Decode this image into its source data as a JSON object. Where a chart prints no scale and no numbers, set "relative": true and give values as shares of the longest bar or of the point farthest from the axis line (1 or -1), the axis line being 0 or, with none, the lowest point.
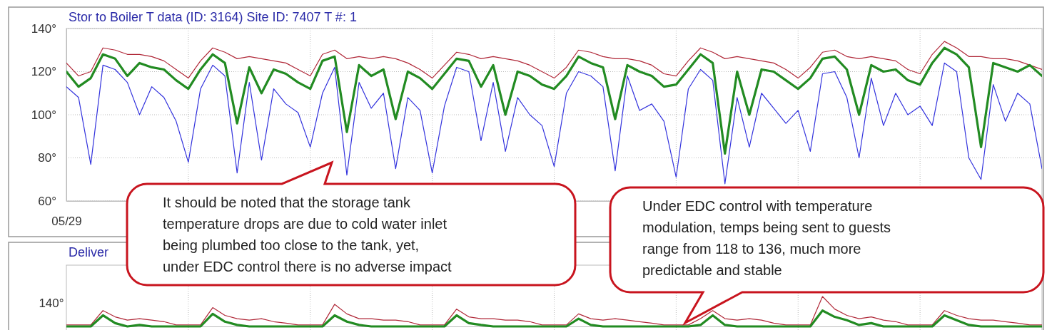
{
  "chart_data": [
    {
      "type": "line",
      "title": "Stor to Boiler T data (ID: 3164) Site ID: 7407 T #: 1",
      "categories": [
        "05/29",
        null,
        null,
        null,
        null,
        null,
        null,
        null,
        null,
        null,
        null,
        null,
        null,
        null,
        null,
        null,
        null,
        null,
        null,
        null,
        null,
        null,
        null,
        null,
        null,
        null,
        null,
        null,
        null,
        null,
        null,
        null,
        null,
        null,
        null,
        null,
        null,
        null,
        null,
        null,
        null,
        null,
        null,
        null,
        null,
        null,
        null,
        null,
        null,
        null,
        null,
        null,
        null,
        null,
        null,
        null,
        null,
        null,
        null,
        null,
        null,
        null,
        null,
        null,
        null,
        null,
        null,
        null,
        null,
        null,
        null,
        null,
        null,
        null,
        null,
        null,
        null,
        null,
        null,
        null,
        null
      ],
      "series": [
        {
          "color": "#3333dd",
          "values": [
            113,
            108,
            77,
            123,
            121,
            115,
            100,
            113,
            108,
            97,
            78,
            112,
            123,
            118,
            73,
            115,
            79,
            112,
            105,
            101,
            85,
            110,
            122,
            72,
            115,
            103,
            110,
            75,
            108,
            102,
            73,
            104,
            122,
            120,
            88,
            115,
            83,
            108,
            100,
            95,
            76,
            110,
            120,
            118,
            113,
            74,
            118,
            102,
            105,
            97,
            71,
            112,
            121,
            116,
            68,
            108,
            85,
            110,
            103,
            96,
            102,
            83,
            119,
            120,
            108,
            80,
            117,
            95,
            110,
            100,
            104,
            95,
            124,
            120,
            80,
            70,
            114,
            97,
            110,
            105,
            75
          ]
        },
        {
          "color": "#b02838",
          "values": [
            124,
            118,
            120,
            131,
            130,
            128,
            128,
            127,
            125,
            121,
            117,
            125,
            131,
            129,
            126,
            127,
            126,
            125,
            124,
            121,
            118,
            128,
            130,
            126,
            127,
            126,
            127,
            126,
            124,
            121,
            117,
            123,
            129,
            128,
            126,
            127,
            126,
            125,
            123,
            120,
            117,
            122,
            130,
            129,
            127,
            126,
            126,
            125,
            123,
            119,
            118,
            125,
            131,
            129,
            126,
            127,
            126,
            125,
            124,
            121,
            117,
            122,
            129,
            130,
            127,
            126,
            127,
            126,
            125,
            121,
            119,
            128,
            134,
            131,
            127,
            127,
            126,
            126,
            125,
            123,
            121
          ]
        },
        {
          "color": "#228b22",
          "values": [
            120,
            113,
            117,
            128,
            126,
            118,
            124,
            122,
            121,
            116,
            112,
            121,
            128,
            124,
            96,
            122,
            110,
            121,
            119,
            115,
            112,
            125,
            127,
            92,
            123,
            118,
            121,
            98,
            120,
            117,
            112,
            119,
            126,
            125,
            113,
            123,
            100,
            120,
            118,
            114,
            112,
            118,
            127,
            124,
            122,
            98,
            123,
            120,
            118,
            113,
            114,
            121,
            128,
            124,
            82,
            120,
            100,
            121,
            120,
            116,
            112,
            117,
            126,
            127,
            121,
            100,
            123,
            120,
            121,
            116,
            114,
            124,
            131,
            128,
            122,
            85,
            124,
            122,
            120,
            123,
            118
          ]
        }
      ],
      "ylim": [
        60,
        140
      ],
      "yticks": [
        {
          "value": 60,
          "label": "60°"
        },
        {
          "value": 80,
          "label": "80°"
        },
        {
          "value": 100,
          "label": "100°"
        },
        {
          "value": 120,
          "label": "120°"
        },
        {
          "value": 140,
          "label": "140°"
        }
      ],
      "grid": true,
      "annotations": [
        "It should be noted that the storage tank\ntemperature drops are due to cold water inlet\nbeing plumbed too close to the tank, yet,\nunder EDC control there is no adverse impact",
        "Under EDC control with temperature\nmodulation, temps being sent to guests\nrange from 118 to 136, much more\npredictable and stable"
      ]
    },
    {
      "type": "line",
      "title": "Deliver",
      "relative": true,
      "categories": [
        null,
        null,
        null,
        null,
        null,
        null,
        null,
        null,
        null,
        null,
        null,
        null,
        null,
        null,
        null,
        null,
        null,
        null,
        null,
        null,
        null,
        null,
        null,
        null,
        null,
        null,
        null,
        null,
        null,
        null,
        null,
        null,
        null,
        null,
        null,
        null,
        null,
        null,
        null,
        null,
        null,
        null,
        null,
        null,
        null,
        null,
        null,
        null,
        null,
        null,
        null,
        null,
        null,
        null,
        null,
        null,
        null,
        null,
        null,
        null,
        null,
        null,
        null,
        null,
        null,
        null,
        null,
        null,
        null,
        null,
        null,
        null,
        null,
        null,
        null,
        null,
        null,
        null,
        null,
        null,
        null
      ],
      "series": [
        {
          "color": "#b02838",
          "values": [
            0.05,
            0.05,
            0.05,
            0.53,
            0.32,
            0.21,
            0.26,
            0.21,
            0.16,
            0.05,
            0.05,
            0.05,
            0.63,
            0.37,
            0.26,
            0.21,
            0.26,
            0.16,
            0.11,
            0.05,
            0.05,
            0.05,
            0.74,
            0.42,
            0.26,
            0.26,
            0.21,
            0.21,
            0.16,
            0.05,
            0.05,
            0.05,
            0.58,
            0.32,
            0.26,
            0.26,
            0.21,
            0.21,
            0.16,
            0.05,
            0.05,
            0.05,
            0.42,
            0.26,
            0.21,
            0.26,
            0.21,
            0.16,
            0.11,
            0.05,
            0.05,
            0.05,
            0.26,
            0.53,
            0.26,
            0.21,
            0.26,
            0.21,
            0.11,
            0.05,
            0.05,
            0.05,
            1,
            0.58,
            0.37,
            0.26,
            0.32,
            0.21,
            0.16,
            0.05,
            0.05,
            0.05,
            0.53,
            0.37,
            0.26,
            0.21,
            0.21,
            0.16,
            0.11,
            0.05,
            0.05
          ]
        },
        {
          "color": "#228b22",
          "values": [
            0,
            0,
            0,
            0.37,
            0.11,
            0,
            0.05,
            0,
            0,
            0,
            0,
            0,
            0.42,
            0.16,
            0.05,
            0,
            0,
            0,
            0,
            0,
            0,
            0,
            0.37,
            0.16,
            0.05,
            0,
            0,
            0,
            0,
            0,
            0,
            0,
            0.37,
            0.11,
            0.05,
            0,
            0,
            0,
            0,
            0,
            0,
            0,
            0.26,
            0.05,
            0,
            0,
            0,
            0,
            0,
            0,
            0,
            0,
            0.05,
            0.37,
            0.05,
            0,
            0,
            0,
            0,
            0,
            0,
            0,
            0.53,
            0.32,
            0.21,
            0.05,
            0.11,
            0,
            0,
            0,
            0,
            0,
            0.37,
            0.21,
            0.05,
            0,
            0,
            0,
            0,
            0,
            0
          ]
        }
      ],
      "grid": true,
      "annotations": [
        "140°"
      ]
    }
  ]
}
